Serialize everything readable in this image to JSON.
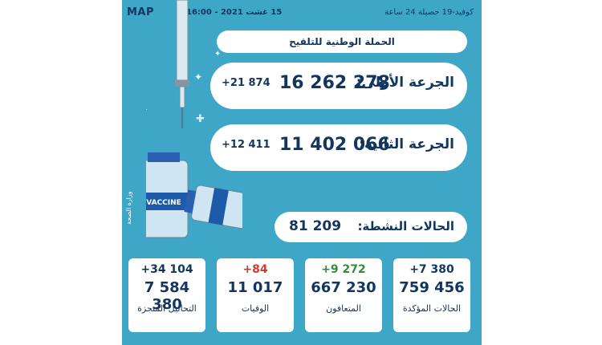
{
  "logo": {
    "text": "MAP"
  },
  "header": {
    "datetime": "15 غشت 2021 - 16:00",
    "title": "كوفيد-19  حصيلة 24 ساعة"
  },
  "campaign": "الحملة الوطنية للتلقيح",
  "dose1": {
    "label": "الجرعة الأولى:",
    "value": "16 262 278",
    "delta": "+21 874"
  },
  "dose2": {
    "label": "الجرعة الثانية:",
    "value": "11 402 066",
    "delta": "+12 411"
  },
  "active": {
    "label": "الحالات النشطة:",
    "value": "81 209"
  },
  "stats": [
    {
      "delta": "+34 104",
      "value": "7 584 380",
      "label": "التحاليل المنجزة",
      "delta_color": "#12365f"
    },
    {
      "delta": "+84",
      "value": "11 017",
      "label": "الوفيات",
      "delta_color": "#d13a2e"
    },
    {
      "delta": "+9 272",
      "value": "667 230",
      "label": "المتعافون",
      "delta_color": "#2f8f3a"
    },
    {
      "delta": "+7 380",
      "value": "759 456",
      "label": "الحالات المؤكدة",
      "delta_color": "#12365f"
    }
  ],
  "illustration": {
    "vial_label": "VACCINE",
    "ministry": "وزارة الصحة"
  },
  "colors": {
    "panel": "#3ea6c7",
    "navy": "#12365f",
    "card": "#ffffff"
  }
}
